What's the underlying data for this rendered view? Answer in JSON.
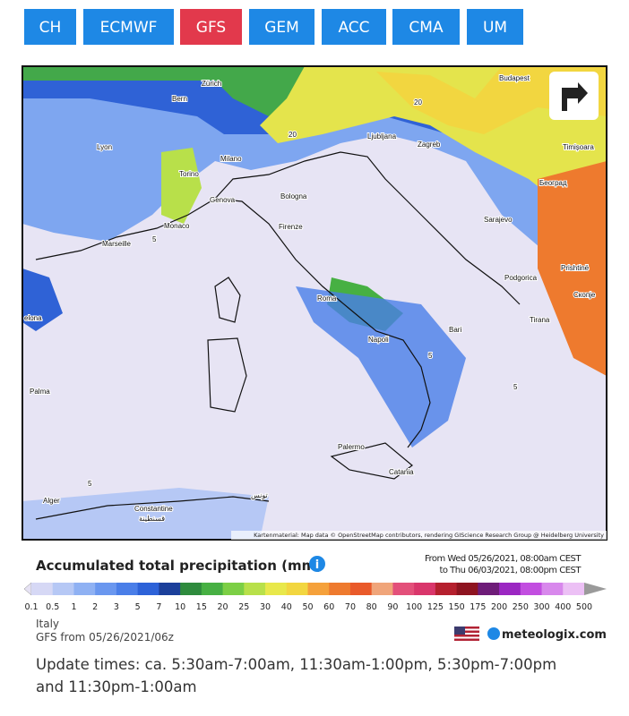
{
  "tabs": [
    "CH",
    "ECMWF",
    "GFS",
    "GEM",
    "ACC",
    "CMA",
    "UM"
  ],
  "active_tab": 2,
  "map": {
    "labels": [
      "Zürich",
      "Budapest",
      "Bern",
      "Lyon",
      "Ljubljana",
      "Zagreb",
      "Timișoara",
      "Torino",
      "Milano",
      "Београд",
      "Genova",
      "Bologna",
      "Sarajevo",
      "Monaco",
      "Firenze",
      "Marseille",
      "Podgorica",
      "Prishtinë",
      "Скопје",
      "Roma",
      "Tirana",
      "elona",
      "Napoli",
      "Bari",
      "Palma",
      "Palermo",
      "Catania",
      "Alger",
      "Constantine",
      "قسنطينة",
      "تونس"
    ],
    "contours": [
      "20",
      "20",
      "5",
      "5",
      "5",
      "5"
    ],
    "attribution": "Kartenmaterial: Map data © OpenStreetMap contributors, rendering GIScience Research Group @ Heidelberg University"
  },
  "legend": {
    "title": "Accumulated total precipitation (mm)",
    "period": [
      "From Wed 05/26/2021, 08:00am CEST",
      "to Thu 06/03/2021, 08:00pm CEST"
    ],
    "labels": [
      0.1,
      0.5,
      1,
      2,
      3,
      5,
      7,
      10,
      15,
      20,
      25,
      30,
      40,
      50,
      60,
      70,
      80,
      90,
      100,
      125,
      150,
      175,
      200,
      250,
      300,
      400,
      500
    ],
    "colors": [
      "#e6e2f4",
      "#d6d8f5",
      "#b6c8f5",
      "#8fb1f3",
      "#6a97ef",
      "#4a7ee8",
      "#2d62d8",
      "#1b3f9a",
      "#2e8b3d",
      "#47b043",
      "#7ccf45",
      "#b8e04a",
      "#e8e84b",
      "#f2d640",
      "#f5a13b",
      "#ee7a2e",
      "#e95a2a",
      "#f0a57a",
      "#e3507a",
      "#d9366b",
      "#b5202e",
      "#8e1420",
      "#6e1c78",
      "#9b27c2",
      "#c24ee0",
      "#d888ec",
      "#ecc0f5",
      "#9a9a9a"
    ]
  },
  "footer": {
    "region": "Italy",
    "run": "GFS from 05/26/2021/06z",
    "brand": "meteologix.com",
    "update": [
      "Update times: ca. 5:30am-7:00am, 11:30am-1:00pm, 5:30pm-7:00pm",
      "and 11:30pm-1:00am"
    ]
  }
}
